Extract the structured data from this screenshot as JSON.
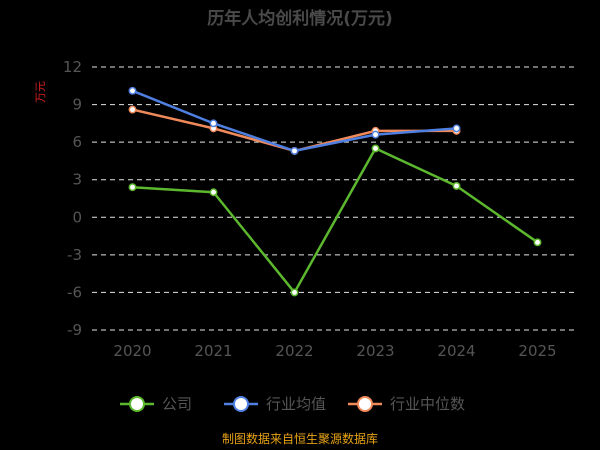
{
  "chart_data": {
    "type": "line",
    "title": "历年人均创利情况(万元)",
    "ylabel": "万元",
    "categories": [
      "2020",
      "2021",
      "2022",
      "2023",
      "2024",
      "2025"
    ],
    "yticks": [
      "12",
      "9",
      "6",
      "3",
      "0",
      "-3",
      "-6",
      "-9"
    ],
    "ylim": [
      -9,
      12
    ],
    "grid": true,
    "legend_position": "bottom",
    "series": [
      {
        "name": "公司",
        "color": "#5cb82e",
        "values": [
          2.4,
          2.0,
          -6.0,
          5.5,
          2.5,
          -2.0
        ]
      },
      {
        "name": "行业均值",
        "color": "#4f7fe0",
        "values": [
          10.1,
          7.5,
          5.3,
          6.6,
          7.1,
          null
        ]
      },
      {
        "name": "行业中位数",
        "color": "#f08a5a",
        "values": [
          8.6,
          7.1,
          5.3,
          6.9,
          6.9,
          null
        ]
      }
    ],
    "source": "制图数据来自恒生聚源数据库"
  }
}
